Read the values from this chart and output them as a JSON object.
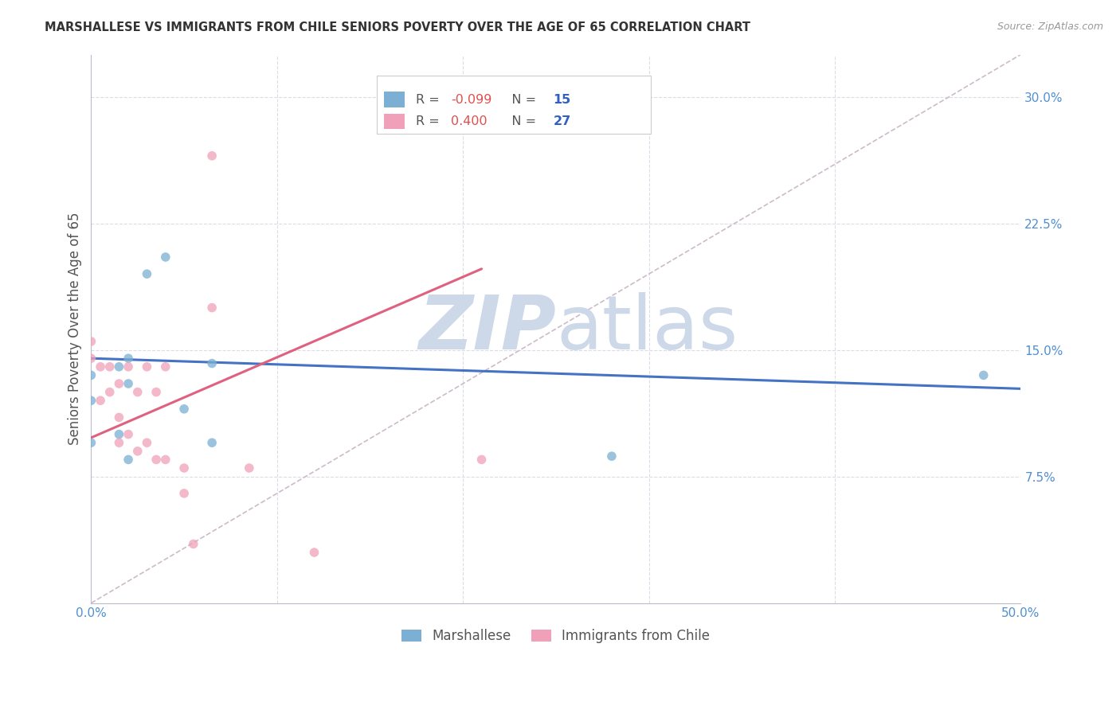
{
  "title": "MARSHALLESE VS IMMIGRANTS FROM CHILE SENIORS POVERTY OVER THE AGE OF 65 CORRELATION CHART",
  "source": "Source: ZipAtlas.com",
  "ylabel": "Seniors Poverty Over the Age of 65",
  "xlim": [
    0.0,
    0.5
  ],
  "ylim": [
    0.0,
    0.325
  ],
  "xtick_positions": [
    0.0,
    0.1,
    0.2,
    0.3,
    0.4,
    0.5
  ],
  "xticklabels": [
    "0.0%",
    "",
    "",
    "",
    "",
    "50.0%"
  ],
  "yticks_right": [
    0.075,
    0.15,
    0.225,
    0.3
  ],
  "ytick_labels_right": [
    "7.5%",
    "15.0%",
    "22.5%",
    "30.0%"
  ],
  "marshallese_x": [
    0.0,
    0.0,
    0.0,
    0.015,
    0.015,
    0.02,
    0.02,
    0.02,
    0.03,
    0.04,
    0.05,
    0.065,
    0.065,
    0.48,
    0.28
  ],
  "marshallese_y": [
    0.135,
    0.12,
    0.095,
    0.14,
    0.1,
    0.145,
    0.13,
    0.085,
    0.195,
    0.205,
    0.115,
    0.142,
    0.095,
    0.135,
    0.087
  ],
  "chile_x": [
    0.0,
    0.0,
    0.005,
    0.005,
    0.01,
    0.01,
    0.015,
    0.015,
    0.015,
    0.02,
    0.02,
    0.025,
    0.025,
    0.03,
    0.03,
    0.035,
    0.035,
    0.04,
    0.04,
    0.05,
    0.05,
    0.055,
    0.065,
    0.065,
    0.085,
    0.12,
    0.21
  ],
  "chile_y": [
    0.155,
    0.145,
    0.14,
    0.12,
    0.14,
    0.125,
    0.13,
    0.11,
    0.095,
    0.14,
    0.1,
    0.125,
    0.09,
    0.14,
    0.095,
    0.125,
    0.085,
    0.14,
    0.085,
    0.08,
    0.065,
    0.035,
    0.265,
    0.175,
    0.08,
    0.03,
    0.085
  ],
  "blue_line_x": [
    0.0,
    0.5
  ],
  "blue_line_y": [
    0.145,
    0.127
  ],
  "pink_line_x": [
    0.0,
    0.21
  ],
  "pink_line_y": [
    0.098,
    0.198
  ],
  "diag_line_x": [
    0.0,
    0.5
  ],
  "diag_line_y": [
    0.0,
    0.325
  ],
  "marker_size": 70,
  "blue_color": "#7bafd4",
  "pink_color": "#f0a0b8",
  "blue_line_color": "#4472c4",
  "pink_line_color": "#e06080",
  "diag_color": "#ccbbc8",
  "watermark_zip": "ZIP",
  "watermark_atlas": "atlas",
  "watermark_color": "#cdd9e8",
  "background_color": "#ffffff",
  "grid_color": "#dcdce8",
  "legend_r1_val": "-0.099",
  "legend_r1_n": "15",
  "legend_r2_val": "0.400",
  "legend_r2_n": "27",
  "r_color_neg": "#e05050",
  "r_color_pos": "#e05050",
  "n_color": "#3060c0",
  "legend_label_color": "#555555"
}
